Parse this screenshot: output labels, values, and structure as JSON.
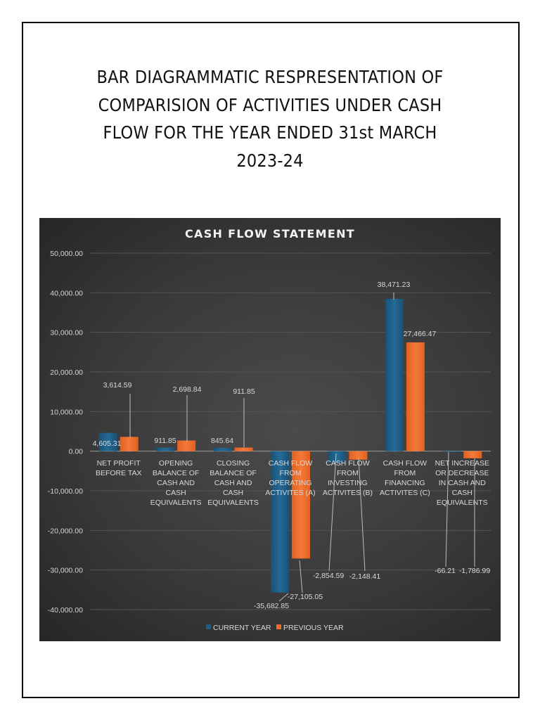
{
  "document": {
    "title_lines": [
      "BAR DIAGRAMMATIC RESPRESENTATION OF",
      "COMPARISION OF ACTIVITIES UNDER CASH",
      "FLOW FOR THE YEAR ENDED 31st MARCH",
      "2023-24"
    ]
  },
  "chart_data": {
    "type": "bar",
    "title": "CASH FLOW STATEMENT",
    "xlabel": "",
    "ylabel": "",
    "ylim": [
      -40000,
      50000
    ],
    "yticks": [
      "50,000.00",
      "40,000.00",
      "30,000.00",
      "20,000.00",
      "10,000.00",
      "0.00",
      "-10,000.00",
      "-20,000.00",
      "-30,000.00",
      "-40,000.00"
    ],
    "grid": true,
    "legend_position": "bottom",
    "categories": [
      [
        "NET PROFIT",
        "BEFORE TAX"
      ],
      [
        "OPENING",
        "BALANCE OF",
        "CASH AND",
        "CASH",
        "EQUIVALENTS"
      ],
      [
        "CLOSING",
        "BALANCE OF",
        "CASH AND",
        "CASH",
        "EQUIVALENTS"
      ],
      [
        "CASH FLOW",
        "FROM",
        "OPERATING",
        "ACTIVITES (A)"
      ],
      [
        "CASH FLOW",
        "FROM",
        "INVESTING",
        "ACTIVITES (B)"
      ],
      [
        "CASH FLOW",
        "FROM",
        "FINANCING",
        "ACTIVITES (C)"
      ],
      [
        "NET INCREASE",
        "OR DECREASE",
        "IN CASH AND",
        "CASH",
        "EQUIVALENTS"
      ]
    ],
    "series": [
      {
        "name": "CURRENT YEAR",
        "color": "#1e5e86",
        "values": [
          4605.31,
          911.85,
          845.64,
          -35682.85,
          -2854.59,
          38471.23,
          -66.21
        ],
        "labels": [
          "4,605.31",
          "911.85",
          "845.64",
          "-35,682.85",
          "-2,854.59",
          "38,471.23",
          "-66.21"
        ]
      },
      {
        "name": "PREVIOUS YEAR",
        "color": "#ee6a28",
        "values": [
          3614.59,
          2698.84,
          911.85,
          -27105.05,
          -2148.41,
          27466.47,
          -1786.99
        ],
        "labels": [
          "3,614.59",
          "2,698.84",
          "911.85",
          "-27,105.05",
          "-2,148.41",
          "27,466.47",
          "-1,786.99"
        ]
      }
    ]
  }
}
